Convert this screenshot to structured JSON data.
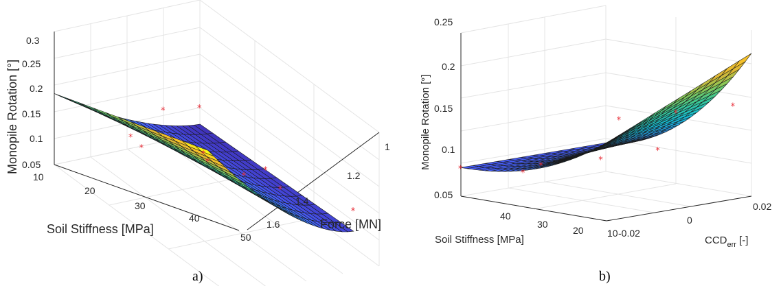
{
  "colors": {
    "colormap": "parula",
    "marker": "#e8303a",
    "grid": "#e6e6e6",
    "mesh": "#1a1a1a"
  },
  "chart_data": [
    {
      "type": "surface",
      "caption": "a)",
      "xlabel": "Soil Stiffness [MPa]",
      "ylabel": "Force [MN]",
      "zlabel": "Monopile Rotation [°]",
      "xticks": [
        "10",
        "20",
        "30",
        "40",
        "50"
      ],
      "yticks": [
        "1",
        "1.2",
        "1.4",
        "1.6"
      ],
      "zticks": [
        "0.05",
        "0.1",
        "0.15",
        "0.2",
        "0.25",
        "0.3"
      ],
      "xlim": [
        10,
        50
      ],
      "ylim": [
        0.9,
        1.6
      ],
      "zlim": [
        0.05,
        0.3
      ],
      "grid": true,
      "points": [
        {
          "x": 10,
          "y": 1.0,
          "z": 0.27
        },
        {
          "x": 10,
          "y": 1.3,
          "z": 0.21
        },
        {
          "x": 20,
          "y": 1.0,
          "z": 0.23
        },
        {
          "x": 20,
          "y": 1.4,
          "z": 0.14
        },
        {
          "x": 30,
          "y": 1.0,
          "z": 0.19
        },
        {
          "x": 30,
          "y": 1.3,
          "z": 0.15
        },
        {
          "x": 40,
          "y": 1.2,
          "z": 0.14
        },
        {
          "x": 40,
          "y": 1.6,
          "z": 0.11
        },
        {
          "x": 50,
          "y": 1.0,
          "z": 0.12
        },
        {
          "x": 50,
          "y": 1.6,
          "z": 0.1
        }
      ]
    },
    {
      "type": "surface",
      "caption": "b)",
      "xlabel": "Soil Stiffness [MPa]",
      "ylabel": "CCD",
      "ylabel_sub": "err",
      "ylabel_unit": " [-]",
      "zlabel": "Monopile Rotation [°]",
      "xticks": [
        "40",
        "30",
        "20",
        "10"
      ],
      "yticks": [
        "-0.02",
        "0",
        "0.02"
      ],
      "zticks": [
        "0.05",
        "0.1",
        "0.15",
        "0.2",
        "0.25"
      ],
      "xlim": [
        10,
        45
      ],
      "ylim": [
        -0.02,
        0.02
      ],
      "zlim": [
        0.05,
        0.25
      ],
      "grid": true,
      "points": [
        {
          "x": 45,
          "y": -0.02,
          "z": 0.085
        },
        {
          "x": 30,
          "y": -0.02,
          "z": 0.093
        },
        {
          "x": 30,
          "y": -0.015,
          "z": 0.098
        },
        {
          "x": 20,
          "y": -0.01,
          "z": 0.11
        },
        {
          "x": 20,
          "y": -0.005,
          "z": 0.155
        },
        {
          "x": 15,
          "y": 0.0,
          "z": 0.118
        },
        {
          "x": 15,
          "y": 0.005,
          "z": 0.16
        },
        {
          "x": 10,
          "y": 0.015,
          "z": 0.165
        }
      ]
    }
  ]
}
